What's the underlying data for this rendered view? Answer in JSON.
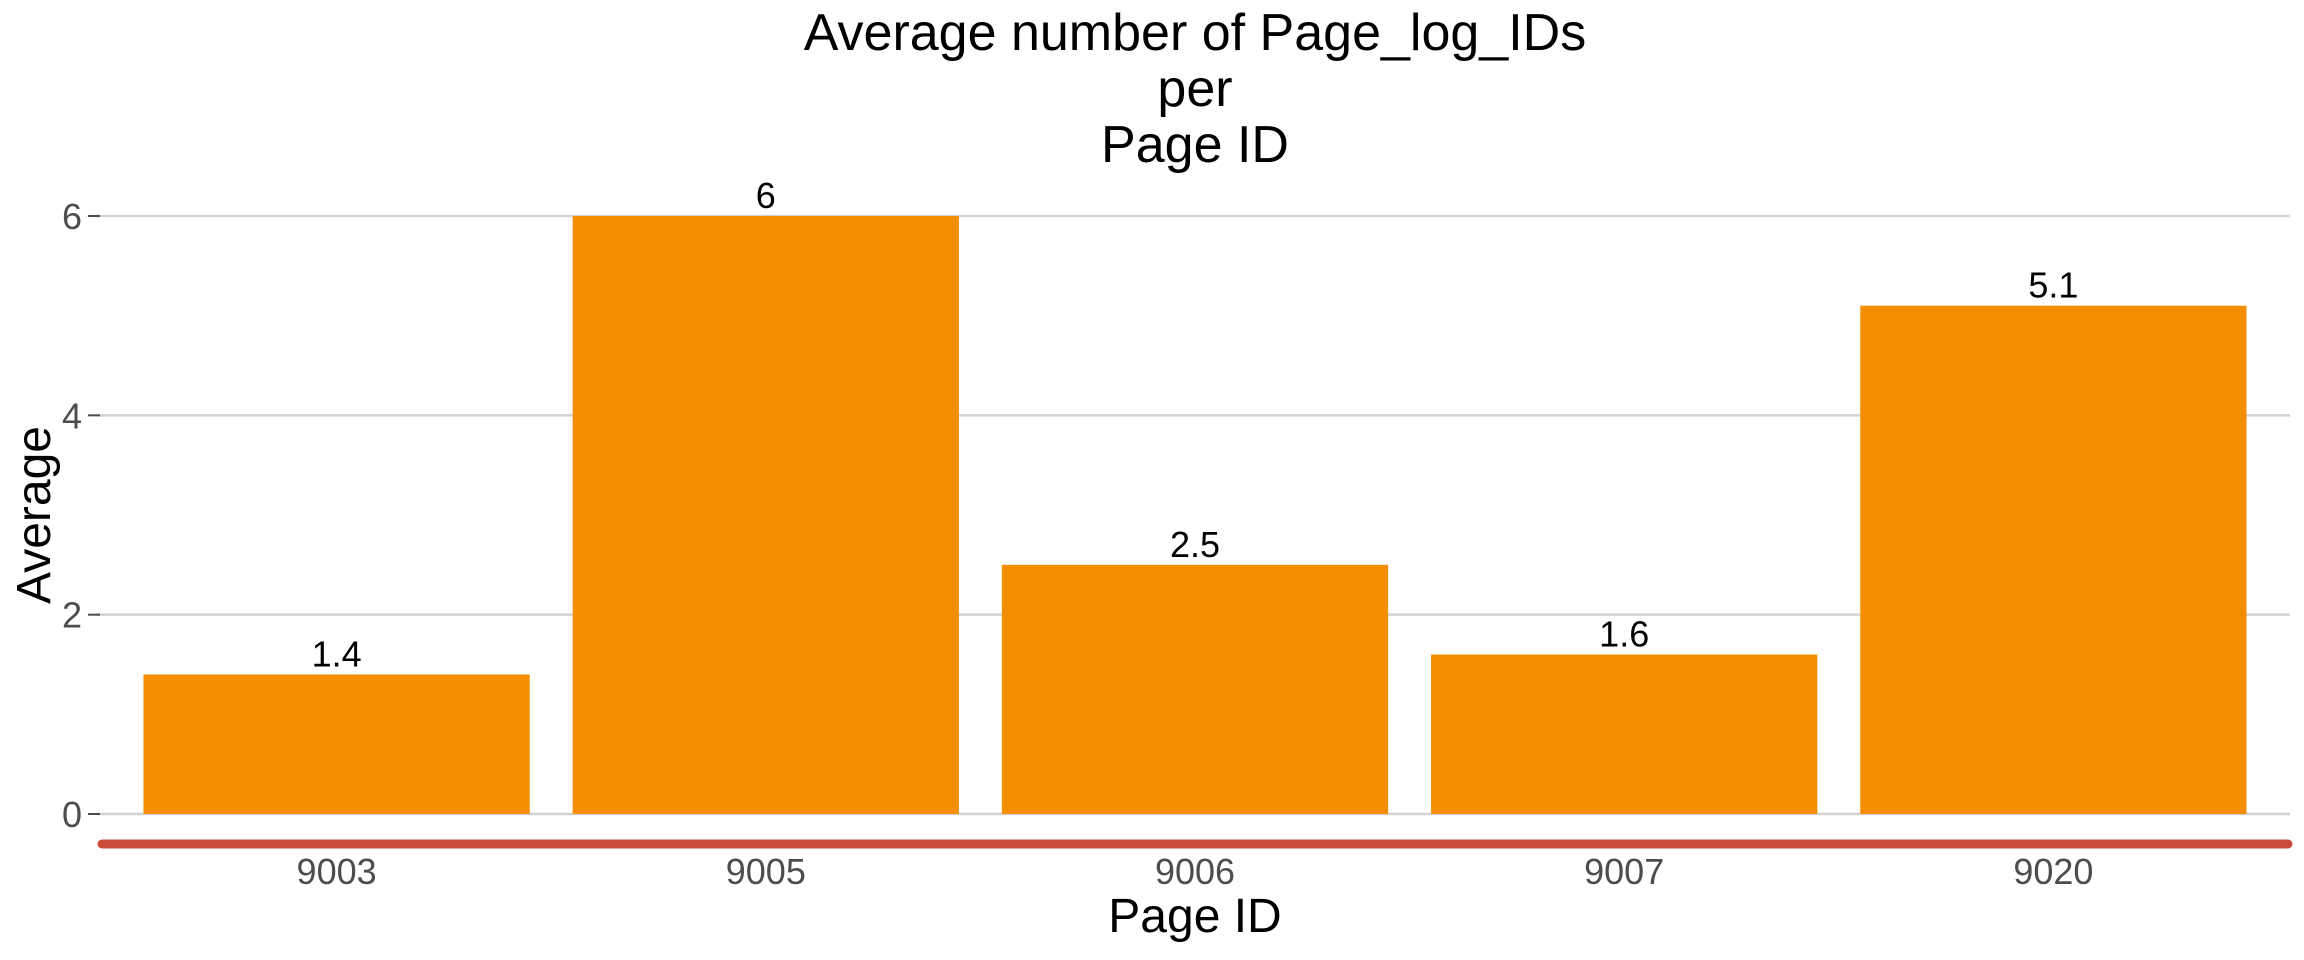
{
  "chart_data": {
    "type": "bar",
    "title_lines": [
      "Average number of Page_log_IDs",
      "per",
      "Page ID"
    ],
    "xlabel": "Page ID",
    "ylabel": "Average",
    "categories": [
      "9003",
      "9005",
      "9006",
      "9007",
      "9020"
    ],
    "values": [
      1.4,
      6,
      2.5,
      1.6,
      5.1
    ],
    "data_labels": [
      "1.4",
      "6",
      "2.5",
      "1.6",
      "5.1"
    ],
    "y_ticks": [
      0,
      2,
      4,
      6
    ],
    "ylim": [
      0,
      6.5
    ],
    "grid": true,
    "legend": "none",
    "colors": {
      "bar": "#f28e00",
      "x_axis_line": "#cb4b3b",
      "gridline": "#d3d3d3"
    }
  }
}
